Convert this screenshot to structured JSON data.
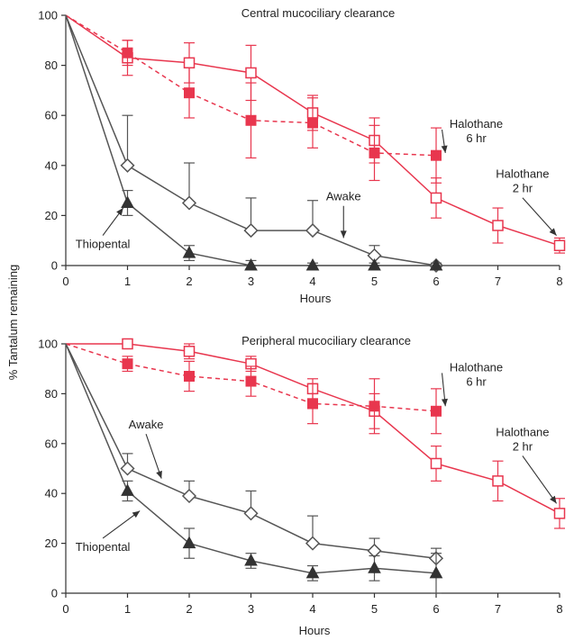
{
  "shared_ylabel": "% Tantalum remaining",
  "colors": {
    "halothane": "#e8364e",
    "control": "#555555",
    "axis": "#333333"
  },
  "chart_data": [
    {
      "type": "line",
      "title": "Central mucociliary clearance",
      "xlabel": "Hours",
      "ylabel": "% Tantalum remaining",
      "xlim": [
        0,
        8
      ],
      "ylim": [
        0,
        100
      ],
      "xticks": [
        0,
        1,
        2,
        3,
        4,
        5,
        6,
        7,
        8
      ],
      "yticks": [
        0,
        20,
        40,
        60,
        80,
        100
      ],
      "grid": false,
      "series": [
        {
          "name": "Halothane 2 hr",
          "marker": "square-open",
          "line": "solid",
          "color": "#e8364e",
          "x": [
            0,
            1,
            2,
            3,
            4,
            5,
            6,
            7,
            8
          ],
          "y": [
            100,
            83,
            81,
            77,
            61,
            50,
            27,
            16,
            8
          ],
          "err": [
            0,
            7,
            8,
            11,
            7,
            9,
            8,
            7,
            3
          ]
        },
        {
          "name": "Halothane 6 hr",
          "marker": "square-filled",
          "line": "dashed",
          "color": "#e8364e",
          "x": [
            0,
            1,
            2,
            3,
            4,
            5,
            6
          ],
          "y": [
            100,
            85,
            69,
            58,
            57,
            45,
            44
          ],
          "err": [
            0,
            5,
            10,
            15,
            10,
            11,
            11
          ]
        },
        {
          "name": "Awake",
          "marker": "diamond-open",
          "line": "solid",
          "color": "#555555",
          "x": [
            0,
            1,
            2,
            3,
            4,
            5,
            6
          ],
          "y": [
            100,
            40,
            25,
            14,
            14,
            4,
            0
          ],
          "err": [
            0,
            20,
            16,
            13,
            12,
            4,
            0
          ]
        },
        {
          "name": "Thiopental",
          "marker": "triangle-filled",
          "line": "solid",
          "color": "#555555",
          "x": [
            0,
            1,
            2,
            3,
            4,
            5,
            6
          ],
          "y": [
            100,
            25,
            5,
            0,
            0,
            0,
            0
          ],
          "err": [
            0,
            5,
            3,
            2,
            1,
            1,
            1
          ]
        }
      ],
      "annotations": [
        {
          "text_lines": [
            "Halothane",
            "6 hr"
          ],
          "x": 6.65,
          "y": 55,
          "arrow": true,
          "arrow_to": [
            6.15,
            45
          ]
        },
        {
          "text_lines": [
            "Halothane",
            "2 hr"
          ],
          "x": 7.4,
          "y": 35,
          "arrow": true,
          "arrow_to": [
            7.95,
            12
          ]
        },
        {
          "text_lines": [
            "Awake"
          ],
          "x": 4.5,
          "y": 26,
          "arrow": true,
          "arrow_to": [
            4.5,
            11
          ]
        },
        {
          "text_lines": [
            "Thiopental"
          ],
          "x": 0.6,
          "y": 7,
          "arrow": true,
          "arrow_to": [
            0.93,
            23
          ]
        }
      ]
    },
    {
      "type": "line",
      "title": "Peripheral mucociliary clearance",
      "xlabel": "Hours",
      "ylabel": "% Tantalum remaining",
      "xlim": [
        0,
        8
      ],
      "ylim": [
        0,
        100
      ],
      "xticks": [
        0,
        1,
        2,
        3,
        4,
        5,
        6,
        7,
        8
      ],
      "yticks": [
        0,
        20,
        40,
        60,
        80,
        100
      ],
      "grid": false,
      "series": [
        {
          "name": "Halothane 2 hr",
          "marker": "square-open",
          "line": "solid",
          "color": "#e8364e",
          "x": [
            0,
            1,
            2,
            3,
            4,
            5,
            6,
            7,
            8
          ],
          "y": [
            100,
            100,
            97,
            92,
            82,
            73,
            52,
            45,
            32
          ],
          "err": [
            0,
            0,
            3,
            3,
            4,
            7,
            7,
            8,
            6
          ]
        },
        {
          "name": "Halothane 6 hr",
          "marker": "square-filled",
          "line": "dashed",
          "color": "#e8364e",
          "x": [
            0,
            1,
            2,
            3,
            4,
            5,
            6
          ],
          "y": [
            100,
            92,
            87,
            85,
            76,
            75,
            73
          ],
          "err": [
            0,
            3,
            6,
            6,
            8,
            11,
            9
          ]
        },
        {
          "name": "Awake",
          "marker": "diamond-open",
          "line": "solid",
          "color": "#555555",
          "x": [
            0,
            1,
            2,
            3,
            4,
            5,
            6
          ],
          "y": [
            100,
            50,
            39,
            32,
            20,
            17,
            14
          ],
          "err": [
            0,
            6,
            6,
            9,
            11,
            5,
            4
          ]
        },
        {
          "name": "Thiopental",
          "marker": "triangle-filled",
          "line": "solid",
          "color": "#555555",
          "x": [
            0,
            1,
            2,
            3,
            4,
            5,
            6
          ],
          "y": [
            100,
            41,
            20,
            13,
            8,
            10,
            8
          ],
          "err": [
            0,
            4,
            6,
            3,
            3,
            5,
            8
          ]
        }
      ],
      "annotations": [
        {
          "text_lines": [
            "Halothane",
            "6 hr"
          ],
          "x": 6.65,
          "y": 89,
          "arrow": true,
          "arrow_to": [
            6.15,
            75
          ]
        },
        {
          "text_lines": [
            "Halothane",
            "2 hr"
          ],
          "x": 7.4,
          "y": 63,
          "arrow": true,
          "arrow_to": [
            7.95,
            36
          ]
        },
        {
          "text_lines": [
            "Awake"
          ],
          "x": 1.3,
          "y": 66,
          "arrow": true,
          "arrow_to": [
            1.55,
            46
          ]
        },
        {
          "text_lines": [
            "Thiopental"
          ],
          "x": 0.6,
          "y": 17,
          "arrow": true,
          "arrow_to": [
            1.2,
            33
          ]
        }
      ]
    }
  ]
}
